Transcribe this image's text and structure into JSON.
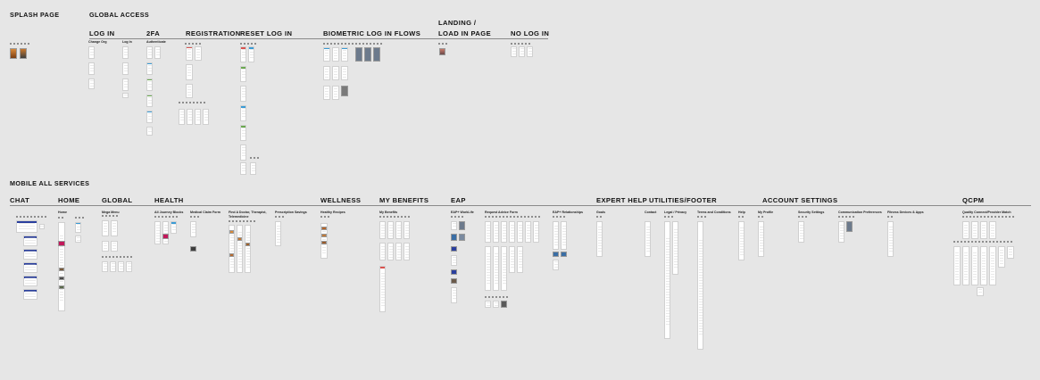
{
  "sections": {
    "splash": "SPLASH PAGE",
    "global_access": "GLOBAL ACCESS",
    "mobile_all": "MOBILE ALL SERVICES"
  },
  "top_columns": {
    "log_in": "LOG IN",
    "twofa": "2FA",
    "registration": "REGISTRATION",
    "reset": "RESET LOG IN",
    "biometric": "BIOMETRIC LOG IN FLOWS",
    "landing_line1": "LANDING /",
    "landing_line2": "LOAD IN PAGE",
    "no_log_in": "NO LOG IN"
  },
  "top_subs": {
    "change_org": "Change Org",
    "log_in": "Log In",
    "authenticate": "Authenticate"
  },
  "bottom_columns": {
    "chat": "CHAT",
    "home": "HOME",
    "global": "GLOBAL",
    "health": "HEALTH",
    "wellness": "WELLNESS",
    "my_benefits": "MY BENEFITS",
    "eap": "EAP",
    "expert_help": "EXPERT HELP",
    "utilities": "UTILITIES/FOOTER",
    "account": "ACCOUNT SETTINGS",
    "qcpm": "QCPM"
  },
  "bottom_subs": {
    "home": "Home",
    "mega_menu": "Mega Menu",
    "all_journey": "All Journey Blocks",
    "medical_claim": "Medical Claim Form",
    "find_doctor_1": "Find A Doctor, Therapist,",
    "find_doctor_2": "Telemedicine",
    "prescription": "Prescription Savings",
    "healthy_recipes": "Healthy Recipes",
    "my_benefits": "My Benefits",
    "eap_worklife": "EAP+ WorkLife",
    "request_advice": "Request Advice Form",
    "eap_relationships": "EAP+ Relationships",
    "goals": "Goals",
    "contact": "Contact",
    "legal": "Legal / Privacy",
    "terms": "Terms and Conditions",
    "help": "Help",
    "my_profile": "My Profile",
    "security": "Security Settings",
    "comm_prefs": "Communication Preferences",
    "fitness": "Fitness Devices & Apps",
    "quality_connect": "Quality Connect/Provider Match"
  },
  "colors": {
    "background": "#e6e6e6",
    "accent_blue": "#2a3f9e",
    "accent_pink": "#c2185b",
    "accent_green": "#6aa84f",
    "accent_red": "#d9534f",
    "accent_cyan": "#3a9bd5",
    "photo_orange": "#d98a3a",
    "photo_dark": "#3d3d3d",
    "slate": "#6c7a8c"
  }
}
